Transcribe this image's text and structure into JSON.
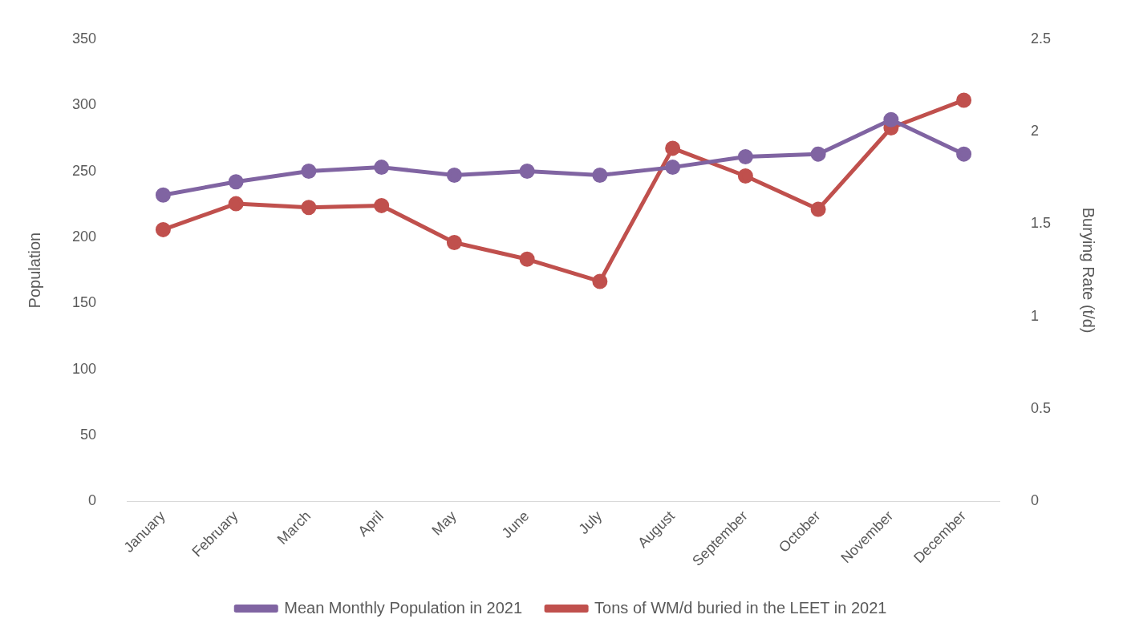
{
  "chart_data": {
    "type": "line",
    "categories": [
      "January",
      "February",
      "March",
      "April",
      "May",
      "June",
      "July",
      "August",
      "September",
      "October",
      "November",
      "December"
    ],
    "series": [
      {
        "name": "Mean Monthly Population in 2021",
        "color": "#8064a2",
        "values": [
          232,
          242,
          250,
          253,
          247,
          250,
          247,
          253,
          261,
          263,
          289,
          263
        ]
      },
      {
        "name": "Tons of WM/d buried in the LEET in 2021",
        "color": "#c0504d",
        "axis": "y2",
        "values": [
          1.47,
          1.61,
          1.59,
          1.6,
          1.4,
          1.31,
          1.19,
          1.91,
          1.76,
          1.58,
          2.02,
          2.17
        ]
      }
    ],
    "ylabel": "Population",
    "y2label": "Burying Rate (t/d)",
    "ylim": [
      0,
      350
    ],
    "yticks": [
      0,
      50,
      100,
      150,
      200,
      250,
      300,
      350
    ],
    "y2lim": [
      0,
      2.5
    ],
    "y2ticks": [
      0,
      0.5,
      1,
      1.5,
      2,
      2.5
    ],
    "grid": false,
    "legend": "bottom",
    "marker": "circle",
    "line_style": "solid"
  }
}
